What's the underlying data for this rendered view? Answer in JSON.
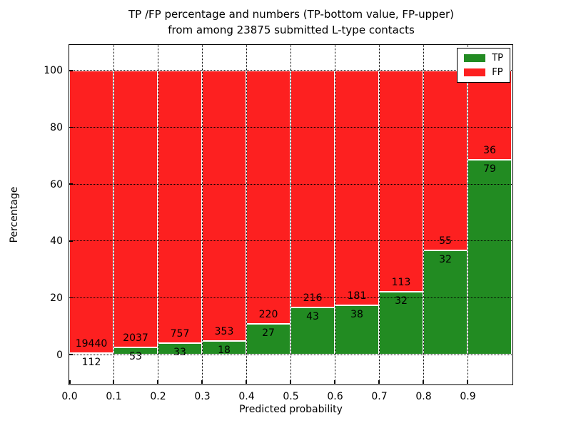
{
  "chart_data": {
    "type": "bar",
    "stacked": true,
    "normalized_to_percent": true,
    "title_lines": [
      "TP /FP percentage and numbers (TP-bottom value, FP-upper)",
      "from among 23875 submitted L-type contacts"
    ],
    "xlabel": "Predicted probability",
    "ylabel": "Percentage",
    "xlim": [
      0.0,
      1.0
    ],
    "ylim": [
      -10.25,
      109.0
    ],
    "x_tick_values": [
      0.0,
      0.1,
      0.2,
      0.3,
      0.4,
      0.5,
      0.6,
      0.7,
      0.8,
      0.9
    ],
    "x_tick_labels": [
      "0.0",
      "0.1",
      "0.2",
      "0.3",
      "0.4",
      "0.5",
      "0.6",
      "0.7",
      "0.8",
      "0.9"
    ],
    "y_tick_values": [
      0,
      20,
      40,
      60,
      80,
      100
    ],
    "y_tick_labels": [
      "0",
      "20",
      "40",
      "60",
      "80",
      "100"
    ],
    "grid": "dotted black, drawn above bars",
    "bin_width": 0.1,
    "bins": [
      {
        "range": [
          0.0,
          0.1
        ],
        "tp": 112,
        "fp": 19440,
        "tp_percent": 0.57
      },
      {
        "range": [
          0.1,
          0.2
        ],
        "tp": 53,
        "fp": 2037,
        "tp_percent": 2.54
      },
      {
        "range": [
          0.2,
          0.3
        ],
        "tp": 33,
        "fp": 757,
        "tp_percent": 4.18
      },
      {
        "range": [
          0.3,
          0.4
        ],
        "tp": 18,
        "fp": 353,
        "tp_percent": 4.85
      },
      {
        "range": [
          0.4,
          0.5
        ],
        "tp": 27,
        "fp": 220,
        "tp_percent": 10.93
      },
      {
        "range": [
          0.5,
          0.6
        ],
        "tp": 43,
        "fp": 216,
        "tp_percent": 16.6
      },
      {
        "range": [
          0.6,
          0.7
        ],
        "tp": 38,
        "fp": 181,
        "tp_percent": 17.35
      },
      {
        "range": [
          0.7,
          0.8
        ],
        "tp": 32,
        "fp": 113,
        "tp_percent": 22.07
      },
      {
        "range": [
          0.8,
          0.9
        ],
        "tp": 32,
        "fp": 55,
        "tp_percent": 36.78
      },
      {
        "range": [
          0.9,
          1.0
        ],
        "tp": 79,
        "fp": 36,
        "tp_percent": 68.7
      }
    ],
    "colors": {
      "tp": "#228b22",
      "fp": "#fd2020",
      "bar_edge": "#ffffff",
      "axis": "#000000"
    },
    "legend": {
      "position": "upper right",
      "entries": [
        {
          "label": "TP",
          "color": "#228b22"
        },
        {
          "label": "FP",
          "color": "#fd2020"
        }
      ]
    }
  }
}
